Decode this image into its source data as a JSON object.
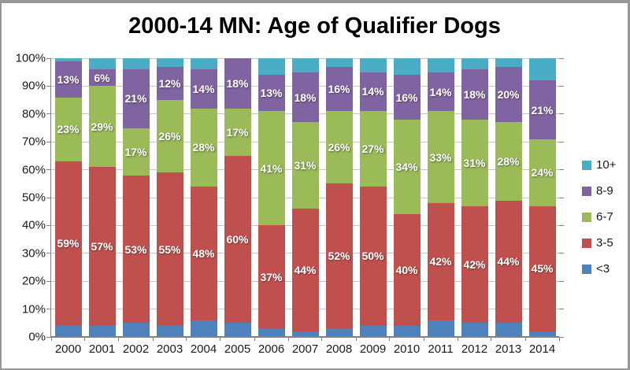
{
  "chart_data": {
    "type": "bar",
    "variant": "stacked-column-100pct",
    "title": "2000-14 MN: Age of Qualifier Dogs",
    "unit": "%",
    "categories": [
      "2000",
      "2001",
      "2002",
      "2003",
      "2004",
      "2005",
      "2006",
      "2007",
      "2008",
      "2009",
      "2010",
      "2011",
      "2012",
      "2013",
      "2014"
    ],
    "series": [
      {
        "name": "<3",
        "color": "#4F81BD",
        "show_labels": false,
        "values": [
          4,
          4,
          5,
          4,
          6,
          5,
          3,
          2,
          3,
          4,
          4,
          6,
          5,
          5,
          2
        ]
      },
      {
        "name": "3-5",
        "color": "#C0504D",
        "show_labels": true,
        "values": [
          59,
          57,
          53,
          55,
          48,
          60,
          37,
          44,
          52,
          50,
          40,
          42,
          42,
          44,
          45
        ]
      },
      {
        "name": "6-7",
        "color": "#9BBB59",
        "show_labels": true,
        "values": [
          23,
          29,
          17,
          26,
          28,
          17,
          41,
          31,
          26,
          27,
          34,
          33,
          31,
          28,
          24
        ]
      },
      {
        "name": "8-9",
        "color": "#8064A2",
        "show_labels": true,
        "values": [
          13,
          6,
          21,
          12,
          14,
          18,
          13,
          18,
          16,
          14,
          16,
          14,
          18,
          20,
          21
        ]
      },
      {
        "name": "10+",
        "color": "#4BACC6",
        "show_labels": false,
        "values": [
          1,
          4,
          4,
          3,
          4,
          0,
          6,
          5,
          3,
          5,
          6,
          5,
          4,
          3,
          8
        ]
      }
    ],
    "y_axis": {
      "ticks": [
        "0%",
        "10%",
        "20%",
        "30%",
        "40%",
        "50%",
        "60%",
        "70%",
        "80%",
        "90%",
        "100%"
      ],
      "min": 0,
      "max": 100
    },
    "legend": {
      "position": "right",
      "order_top_to_bottom": [
        "10+",
        "8-9",
        "6-7",
        "3-5",
        "<3"
      ]
    },
    "grid": true
  }
}
